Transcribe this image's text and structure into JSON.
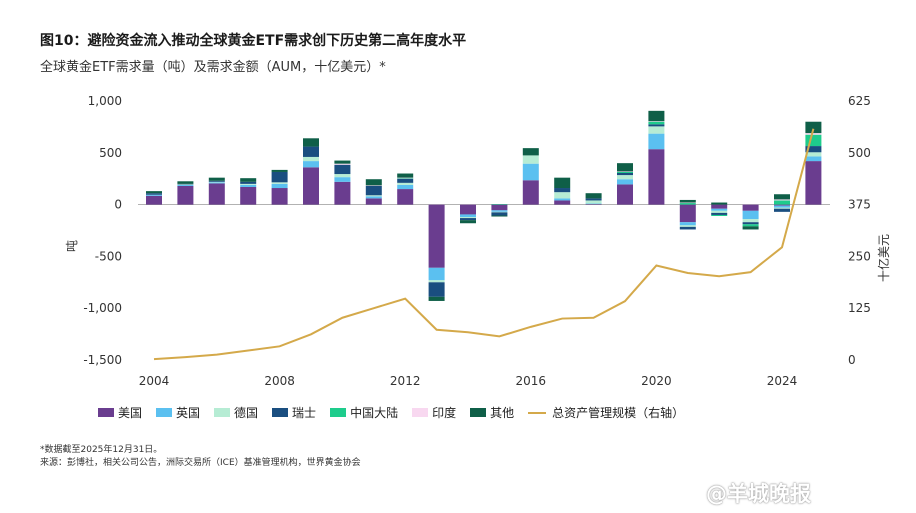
{
  "title": "图10：避险资金流入推动全球黄金ETF需求创下历史第二高年度水平",
  "subtitle": "全球黄金ETF需求量（吨）及需求金额（AUM，十亿美元）*",
  "notes": {
    "line1": "*数据截至2025年12月31日。",
    "line2": "来源：彭博社，相关公司公告，洲际交易所（ICE）基准管理机构，世界黄金协会"
  },
  "watermark": "@羊城晚报",
  "chart_data": {
    "type": "bar",
    "stacked": true,
    "categories": [
      "2004",
      "2005",
      "2006",
      "2007",
      "2008",
      "2009",
      "2010",
      "2011",
      "2012",
      "2013",
      "2014",
      "2015",
      "2016",
      "2017",
      "2018",
      "2019",
      "2020",
      "2021",
      "2022",
      "2023",
      "2024",
      "2025"
    ],
    "xticks": [
      "2004",
      "2008",
      "2012",
      "2016",
      "2020",
      "2024"
    ],
    "ylabel": "吨",
    "y2label": "十亿美元",
    "ylim": [
      -1500,
      1000
    ],
    "yticks": [
      "1,000",
      "500",
      "0",
      "-500",
      "-1,000",
      "-1,500"
    ],
    "ytick_values": [
      1000,
      500,
      0,
      -500,
      -1000,
      -1500
    ],
    "y2lim": [
      0,
      625
    ],
    "y2ticks": [
      "625",
      "500",
      "375",
      "250",
      "125",
      "0"
    ],
    "y2tick_values": [
      625,
      500,
      375,
      250,
      125,
      0
    ],
    "grid": false,
    "legend_position": "bottom",
    "series": [
      {
        "name": "美国",
        "color": "#6a3d8f",
        "values": [
          85,
          180,
          205,
          170,
          160,
          360,
          220,
          60,
          150,
          -610,
          -95,
          -55,
          235,
          40,
          5,
          195,
          535,
          -170,
          -40,
          -60,
          -10,
          420
        ]
      },
      {
        "name": "英国",
        "color": "#5bc0f0",
        "values": [
          10,
          10,
          10,
          20,
          40,
          60,
          45,
          20,
          40,
          -120,
          -25,
          -15,
          160,
          20,
          5,
          50,
          150,
          -30,
          -20,
          -80,
          -20,
          45
        ]
      },
      {
        "name": "德国",
        "color": "#b6ecd4",
        "values": [
          0,
          5,
          5,
          10,
          15,
          40,
          30,
          10,
          20,
          -20,
          -10,
          -5,
          80,
          60,
          30,
          40,
          70,
          -15,
          -20,
          -30,
          -10,
          40
        ]
      },
      {
        "name": "瑞士",
        "color": "#1a4e80",
        "values": [
          15,
          5,
          10,
          20,
          100,
          100,
          90,
          90,
          40,
          -140,
          -20,
          -30,
          0,
          40,
          20,
          20,
          20,
          -25,
          -20,
          -20,
          -30,
          60
        ]
      },
      {
        "name": "中国大陆",
        "color": "#1ecc8c",
        "values": [
          0,
          0,
          0,
          0,
          0,
          0,
          0,
          0,
          5,
          0,
          0,
          5,
          0,
          0,
          0,
          10,
          25,
          15,
          -10,
          -20,
          40,
          110
        ]
      },
      {
        "name": "印度",
        "color": "#f8d8f0",
        "values": [
          0,
          0,
          0,
          0,
          0,
          0,
          10,
          5,
          5,
          0,
          0,
          0,
          0,
          0,
          0,
          5,
          5,
          5,
          0,
          0,
          10,
          15
        ]
      },
      {
        "name": "其他",
        "color": "#0f5f48",
        "values": [
          20,
          25,
          30,
          35,
          20,
          80,
          30,
          60,
          40,
          -40,
          -30,
          -10,
          70,
          100,
          50,
          80,
          100,
          25,
          20,
          -30,
          50,
          110
        ]
      }
    ],
    "secondary_series": {
      "name": "总资产管理规模（右轴）",
      "color": "#d4a94a",
      "axis": "right",
      "values": [
        2,
        7,
        13,
        23,
        33,
        62,
        102,
        125,
        148,
        73,
        67,
        57,
        80,
        100,
        102,
        142,
        228,
        210,
        202,
        212,
        272,
        558
      ]
    }
  }
}
